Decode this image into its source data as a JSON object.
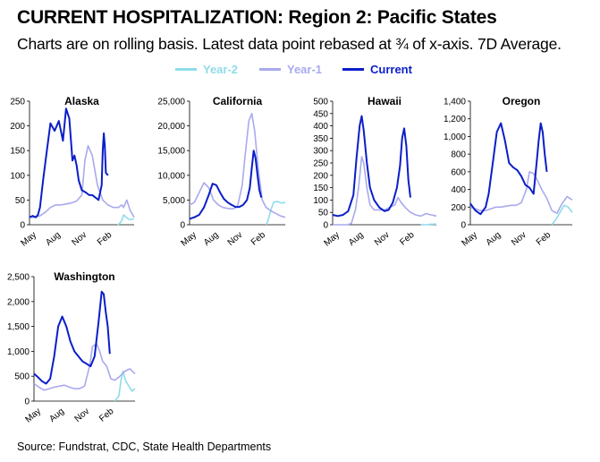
{
  "title": "CURRENT HOSPITALIZATION:  Region 2: Pacific States",
  "subtitle": "Charts are on rolling basis. Latest data point rebased at ¾ of x-axis. 7D Average.",
  "source": "Source: Fundstrat, CDC, State Health Departments",
  "colors": {
    "year2": "#8fdcea",
    "year1": "#a9a9ee",
    "current": "#0a1ec8"
  },
  "legend": [
    {
      "label": "Year-2",
      "key": "year2"
    },
    {
      "label": "Year-1",
      "key": "year1"
    },
    {
      "label": "Current",
      "key": "current"
    }
  ],
  "chart_data": [
    {
      "type": "line",
      "title": "Alaska",
      "ylim": [
        0,
        250
      ],
      "yticks": [
        "0",
        "50",
        "100",
        "150",
        "200",
        "250"
      ],
      "xticks": [
        "May",
        "Aug",
        "Nov",
        "Feb"
      ],
      "series": [
        {
          "name": "Year-2",
          "x": [
            0.84,
            0.86,
            0.88,
            0.9,
            0.93,
            0.96,
            1.0
          ],
          "values": [
            0,
            2,
            8,
            20,
            14,
            10,
            12
          ]
        },
        {
          "name": "Year-1",
          "x": [
            0,
            0.05,
            0.1,
            0.15,
            0.2,
            0.25,
            0.3,
            0.35,
            0.4,
            0.45,
            0.5,
            0.53,
            0.56,
            0.6,
            0.65,
            0.7,
            0.75,
            0.8,
            0.85,
            0.88,
            0.9,
            0.93,
            0.96,
            1.0
          ],
          "values": [
            15,
            15,
            18,
            25,
            35,
            40,
            40,
            42,
            44,
            48,
            60,
            130,
            160,
            140,
            80,
            50,
            40,
            35,
            35,
            40,
            35,
            50,
            30,
            15
          ]
        },
        {
          "name": "Current",
          "x": [
            0,
            0.03,
            0.06,
            0.08,
            0.1,
            0.13,
            0.16,
            0.2,
            0.24,
            0.28,
            0.32,
            0.35,
            0.38,
            0.4,
            0.41,
            0.43,
            0.45,
            0.47,
            0.5,
            0.54,
            0.57,
            0.6,
            0.63,
            0.66,
            0.69,
            0.7,
            0.71,
            0.72,
            0.73,
            0.75
          ],
          "values": [
            15,
            18,
            15,
            20,
            35,
            90,
            140,
            205,
            190,
            210,
            170,
            235,
            215,
            160,
            130,
            140,
            120,
            90,
            70,
            65,
            60,
            60,
            55,
            50,
            80,
            150,
            185,
            160,
            105,
            100
          ]
        }
      ]
    },
    {
      "type": "line",
      "title": "California",
      "ylim": [
        0,
        25000
      ],
      "yticks": [
        "0",
        "5,000",
        "10,000",
        "15,000",
        "20,000",
        "25,000"
      ],
      "xticks": [
        "May",
        "Aug",
        "Nov",
        "Feb"
      ],
      "series": [
        {
          "name": "Year-2",
          "x": [
            0.8,
            0.82,
            0.85,
            0.88,
            0.92,
            0.96,
            1.0
          ],
          "values": [
            0,
            800,
            3000,
            4600,
            4700,
            4400,
            4500
          ]
        },
        {
          "name": "Year-1",
          "x": [
            0,
            0.05,
            0.1,
            0.15,
            0.2,
            0.25,
            0.3,
            0.35,
            0.4,
            0.45,
            0.5,
            0.55,
            0.58,
            0.62,
            0.65,
            0.68,
            0.72,
            0.76,
            0.8,
            0.85,
            0.9,
            0.95,
            1.0
          ],
          "values": [
            4000,
            4500,
            6500,
            8500,
            7500,
            5000,
            4000,
            3500,
            3300,
            3200,
            3600,
            8000,
            14000,
            21000,
            22500,
            19000,
            11000,
            5000,
            3500,
            2800,
            2300,
            1800,
            1500
          ]
        },
        {
          "name": "Current",
          "x": [
            0,
            0.05,
            0.1,
            0.15,
            0.2,
            0.24,
            0.28,
            0.32,
            0.36,
            0.4,
            0.44,
            0.48,
            0.52,
            0.56,
            0.6,
            0.63,
            0.65,
            0.67,
            0.69,
            0.71,
            0.73,
            0.75
          ],
          "values": [
            1200,
            1500,
            2000,
            3500,
            6000,
            8300,
            8000,
            6500,
            5200,
            4500,
            4000,
            3600,
            3600,
            4000,
            5000,
            7500,
            11500,
            15000,
            13500,
            10000,
            7000,
            5500
          ]
        }
      ]
    },
    {
      "type": "line",
      "title": "Hawaii",
      "ylim": [
        0,
        500
      ],
      "yticks": [
        "0",
        "50",
        "100",
        "150",
        "200",
        "250",
        "300",
        "350",
        "400",
        "450",
        "500"
      ],
      "xticks": [
        "May",
        "Aug",
        "Nov",
        "Feb"
      ],
      "series": [
        {
          "name": "Year-2",
          "x": [
            0.85,
            0.9,
            0.95,
            1.0
          ],
          "values": [
            0,
            0,
            2,
            3
          ]
        },
        {
          "name": "Year-1",
          "x": [
            0,
            0.05,
            0.1,
            0.14,
            0.18,
            0.22,
            0.25,
            0.28,
            0.3,
            0.33,
            0.36,
            0.4,
            0.45,
            0.5,
            0.55,
            0.6,
            0.63,
            0.66,
            0.7,
            0.75,
            0.8,
            0.85,
            0.9,
            0.95,
            1.0
          ],
          "values": [
            0,
            0,
            0,
            0,
            5,
            60,
            150,
            275,
            250,
            150,
            80,
            60,
            60,
            60,
            70,
            80,
            110,
            90,
            70,
            50,
            40,
            35,
            45,
            40,
            35
          ]
        },
        {
          "name": "Current",
          "x": [
            0,
            0.05,
            0.1,
            0.15,
            0.2,
            0.23,
            0.26,
            0.28,
            0.3,
            0.33,
            0.36,
            0.4,
            0.45,
            0.5,
            0.54,
            0.58,
            0.62,
            0.65,
            0.67,
            0.69,
            0.71,
            0.73,
            0.75
          ],
          "values": [
            40,
            35,
            40,
            55,
            120,
            270,
            400,
            440,
            380,
            250,
            150,
            100,
            70,
            55,
            60,
            90,
            150,
            240,
            350,
            390,
            320,
            180,
            110
          ]
        }
      ]
    },
    {
      "type": "line",
      "title": "Oregon",
      "ylim": [
        0,
        1400
      ],
      "yticks": [
        "0",
        "200",
        "400",
        "600",
        "800",
        "1,000",
        "1,200",
        "1,400"
      ],
      "xticks": [
        "May",
        "Aug",
        "Nov",
        "Feb"
      ],
      "series": [
        {
          "name": "Year-2",
          "x": [
            0.8,
            0.84,
            0.88,
            0.92,
            0.96,
            1.0
          ],
          "values": [
            0,
            60,
            140,
            220,
            200,
            140
          ]
        },
        {
          "name": "Year-1",
          "x": [
            0,
            0.05,
            0.1,
            0.15,
            0.2,
            0.25,
            0.3,
            0.35,
            0.4,
            0.45,
            0.5,
            0.55,
            0.58,
            0.62,
            0.66,
            0.7,
            0.75,
            0.8,
            0.85,
            0.9,
            0.95,
            1.0
          ],
          "values": [
            200,
            180,
            160,
            160,
            180,
            200,
            200,
            210,
            220,
            220,
            250,
            400,
            600,
            580,
            500,
            400,
            300,
            160,
            130,
            240,
            320,
            280
          ]
        },
        {
          "name": "Current",
          "x": [
            0,
            0.05,
            0.1,
            0.15,
            0.18,
            0.22,
            0.26,
            0.3,
            0.34,
            0.38,
            0.42,
            0.46,
            0.5,
            0.54,
            0.58,
            0.62,
            0.65,
            0.67,
            0.69,
            0.71,
            0.73,
            0.75
          ],
          "values": [
            240,
            160,
            120,
            200,
            350,
            700,
            1050,
            1150,
            950,
            700,
            650,
            620,
            550,
            450,
            420,
            350,
            700,
            950,
            1150,
            1050,
            800,
            600
          ]
        }
      ]
    },
    {
      "type": "line",
      "title": "Washington",
      "ylim": [
        0,
        2500
      ],
      "yticks": [
        "0",
        "500",
        "1,000",
        "1,500",
        "2,000",
        "2,500"
      ],
      "xticks": [
        "May",
        "Aug",
        "Nov",
        "Feb"
      ],
      "series": [
        {
          "name": "Year-2",
          "x": [
            0.8,
            0.84,
            0.86,
            0.88,
            0.91,
            0.94,
            0.97,
            1.0
          ],
          "values": [
            0,
            100,
            400,
            600,
            400,
            300,
            200,
            250
          ]
        },
        {
          "name": "Year-1",
          "x": [
            0,
            0.05,
            0.1,
            0.15,
            0.2,
            0.25,
            0.3,
            0.35,
            0.4,
            0.45,
            0.5,
            0.55,
            0.58,
            0.62,
            0.65,
            0.68,
            0.72,
            0.76,
            0.8,
            0.85,
            0.9,
            0.95,
            1.0
          ],
          "values": [
            350,
            280,
            220,
            250,
            280,
            300,
            320,
            280,
            250,
            250,
            300,
            700,
            1100,
            1150,
            1000,
            800,
            700,
            450,
            420,
            500,
            600,
            650,
            550
          ]
        },
        {
          "name": "Current",
          "x": [
            0,
            0.04,
            0.08,
            0.12,
            0.16,
            0.2,
            0.24,
            0.28,
            0.32,
            0.36,
            0.4,
            0.44,
            0.48,
            0.52,
            0.56,
            0.6,
            0.64,
            0.67,
            0.69,
            0.71,
            0.73,
            0.75
          ],
          "values": [
            550,
            480,
            400,
            350,
            450,
            900,
            1500,
            1700,
            1500,
            1200,
            1000,
            900,
            800,
            750,
            700,
            900,
            1600,
            2200,
            2150,
            1800,
            1500,
            950
          ]
        }
      ]
    }
  ]
}
